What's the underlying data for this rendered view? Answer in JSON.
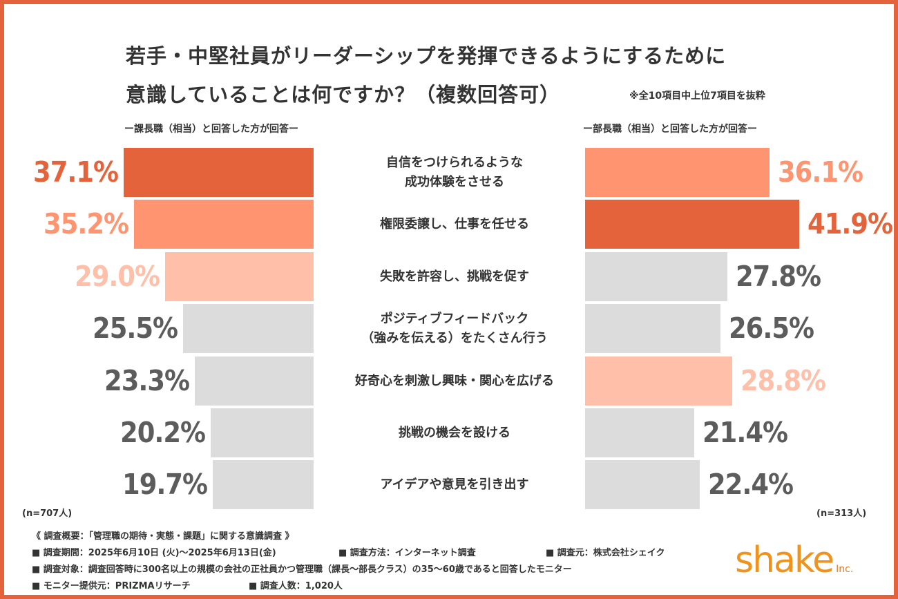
{
  "title": {
    "line1": "若手・中堅社員がリーダーシップを発揮できるようにするために",
    "line2": "意識していることは何ですか？（複数回答可）",
    "note": "※全10項目中上位7項目を抜粋"
  },
  "left_group": {
    "header": "ー課長職（相当）と回答した方が回答ー",
    "n": "(n=707人)"
  },
  "right_group": {
    "header": "ー部長職（相当）と回答した方が回答ー",
    "n": "(n=313人)"
  },
  "chart_data": {
    "type": "bar",
    "orientation": "horizontal-butterfly",
    "categories": [
      "自信をつけられるような\n成功体験をさせる",
      "権限委譲し、仕事を任せる",
      "失敗を許容し、挑戦を促す",
      "ポジティブフィードバック\n（強みを伝える）をたくさん行う",
      "好奇心を刺激し興味・関心を広げる",
      "挑戦の機会を設ける",
      "アイデアや意見を引き出す"
    ],
    "series": [
      {
        "name": "ー課長職（相当）と回答した方が回答ー",
        "values": [
          37.1,
          35.2,
          29.0,
          25.5,
          23.3,
          20.2,
          19.7
        ],
        "labels": [
          "37.1%",
          "35.2%",
          "29.0%",
          "25.5%",
          "23.3%",
          "20.2%",
          "19.7%"
        ],
        "ranks": [
          1,
          2,
          3,
          0,
          0,
          0,
          0
        ]
      },
      {
        "name": "ー部長職（相当）と回答した方が回答ー",
        "values": [
          36.1,
          41.9,
          27.8,
          26.5,
          28.8,
          21.4,
          22.4
        ],
        "labels": [
          "36.1%",
          "41.9%",
          "27.8%",
          "26.5%",
          "28.8%",
          "21.4%",
          "22.4%"
        ],
        "ranks": [
          2,
          1,
          0,
          0,
          3,
          0,
          0
        ]
      }
    ],
    "colors": {
      "rank1": "#e5633a",
      "rank2": "#ff9470",
      "rank3": "#ffbfa9",
      "other": "#dcdcdc",
      "label_other": "#5c5c5c"
    }
  },
  "footer": {
    "summary": "《 調査概要：「管理職の期待・実態・課題」に関する意識調査 》",
    "period": "■ 調査期間：2025年6月10日 (火)～2025年6月13日(金)",
    "method": "■ 調査方法：インターネット調査",
    "source": "■ 調査元：株式会社シェイク",
    "target": "■ 調査対象：調査回答時に300名以上の規模の会社の正社員かつ管理職（課長～部長クラス）の35～60歳であると回答したモニター",
    "provider": "■ モニター提供元：PRIZMAリサーチ",
    "count": "■ 調査人数：1,020人"
  },
  "logo": {
    "text": "shake",
    "suffix": "Inc."
  }
}
